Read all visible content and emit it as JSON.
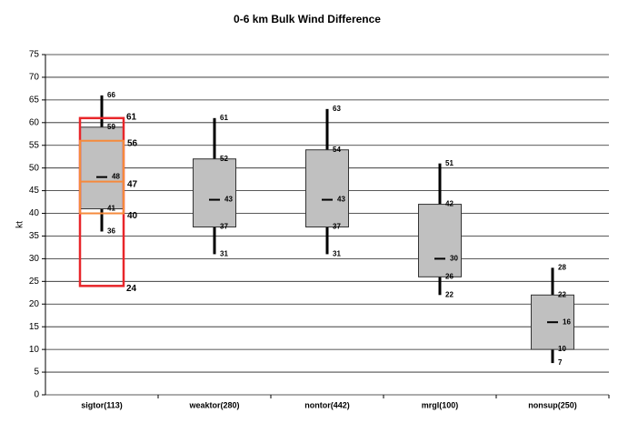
{
  "chart_data": {
    "type": "box",
    "title": "0-6 km Bulk Wind Difference",
    "y_label": "kt",
    "categories": [
      "sigtor(113)",
      "weaktor(280)",
      "nontor(442)",
      "mrgl(100)",
      "nonsup(250)"
    ],
    "boxes": [
      {
        "whislo": 36,
        "q1": 41,
        "med": 48,
        "q3": 59,
        "whishi": 66
      },
      {
        "whislo": 31,
        "q1": 37,
        "med": 43,
        "q3": 52,
        "whishi": 61
      },
      {
        "whislo": 31,
        "q1": 37,
        "med": 43,
        "q3": 54,
        "whishi": 63
      },
      {
        "whislo": 22,
        "q1": 26,
        "med": 30,
        "q3": 42,
        "whishi": 51
      },
      {
        "whislo": 7,
        "q1": 10,
        "med": 16,
        "q3": 22,
        "whishi": 28
      }
    ],
    "color": "#c0c0c0",
    "overlay": {
      "category": "sigtor(113)",
      "low": 24,
      "high": 61,
      "q1": 40,
      "q3": 56,
      "med": 47,
      "outer_color": "#e8262a",
      "inner_color": "#f58a3c"
    },
    "ylim": [
      0,
      75
    ],
    "yticks": [
      0,
      5,
      10,
      15,
      20,
      25,
      30,
      35,
      40,
      45,
      50,
      55,
      60,
      65,
      70,
      75
    ],
    "grid": true
  }
}
